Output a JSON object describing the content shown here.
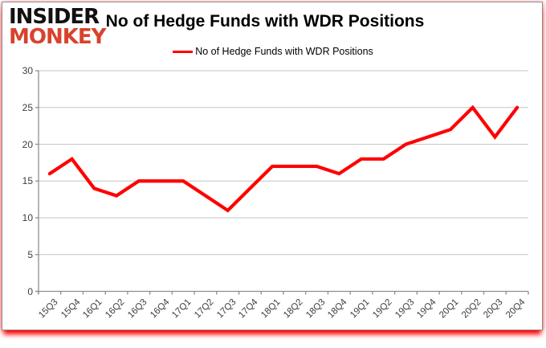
{
  "logo": {
    "line1": "INSIDER",
    "line2": "MONKEY",
    "color_line1": "#111111",
    "color_line2": "#d7432d"
  },
  "header": {
    "title": "No of Hedge Funds with WDR Positions"
  },
  "legend": {
    "label": "No of Hedge Funds with WDR Positions",
    "swatch_color": "#ff0000"
  },
  "chart_data": {
    "type": "line",
    "title": "No of Hedge Funds with WDR Positions",
    "categories": [
      "15Q3",
      "15Q4",
      "16Q1",
      "16Q2",
      "16Q3",
      "16Q4",
      "17Q1",
      "17Q2",
      "17Q3",
      "17Q4",
      "18Q1",
      "18Q2",
      "18Q3",
      "18Q4",
      "19Q1",
      "19Q2",
      "19Q3",
      "19Q4",
      "20Q1",
      "20Q2",
      "20Q3",
      "20Q4"
    ],
    "series": [
      {
        "name": "No of Hedge Funds with WDR Positions",
        "color": "#ff0000",
        "values": [
          16,
          18,
          14,
          13,
          15,
          15,
          15,
          13,
          11,
          14,
          17,
          17,
          17,
          16,
          18,
          18,
          20,
          21,
          22,
          25,
          21,
          25
        ]
      }
    ],
    "xlabel": "",
    "ylabel": "",
    "ylim": [
      0,
      30
    ],
    "yticks": [
      0,
      5,
      10,
      15,
      20,
      25,
      30
    ],
    "grid": "horizontal",
    "legend_position": "top-center",
    "colors": {
      "gridline": "#c6c6c6",
      "axis": "#8e8e8e",
      "tick_label": "#3d3d3d"
    }
  }
}
